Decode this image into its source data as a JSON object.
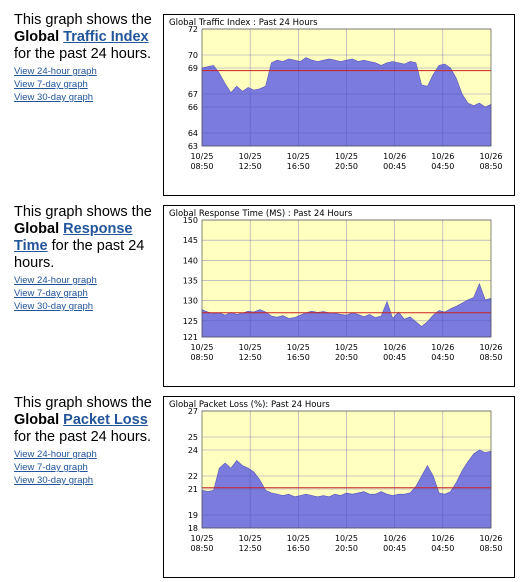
{
  "sections": [
    {
      "desc_prefix": "This graph shows the ",
      "desc_bold": "Global",
      "desc_link": "Traffic Index",
      "desc_suffix": " for the past 24 hours.",
      "links": [
        "View 24-hour graph",
        "View 7-day graph",
        "View 30-day graph"
      ]
    },
    {
      "desc_prefix": "This graph shows the ",
      "desc_bold": "Global",
      "desc_link": "Response Time",
      "desc_suffix": " for the past 24 hours.",
      "links": [
        "View 24-hour graph",
        "View 7-day graph",
        "View 30-day graph"
      ]
    },
    {
      "desc_prefix": "This graph shows the ",
      "desc_bold": "Global",
      "desc_link": "Packet Loss",
      "desc_suffix": " for the past 24 hours.",
      "links": [
        "View 24-hour graph",
        "View 7-day graph",
        "View 30-day graph"
      ]
    }
  ],
  "colors": {
    "plot_bg": "#ffffc0",
    "area": "#7b7bdd",
    "area_edge": "#5555bb",
    "avg_line": "#cc2222",
    "link": "#225599"
  },
  "chart_data": [
    {
      "type": "area",
      "title": "Global Traffic Index : Past 24 Hours",
      "x_ticks": [
        "10/25\n08:50",
        "10/25\n12:50",
        "10/25\n16:50",
        "10/25\n20:50",
        "10/26\n00:45",
        "10/26\n04:50",
        "10/26\n08:50"
      ],
      "y_ticks": [
        63,
        64,
        66,
        67,
        69,
        70,
        72
      ],
      "ylim": [
        63,
        72
      ],
      "average": 68.8,
      "values": [
        69.0,
        69.1,
        69.2,
        68.6,
        67.8,
        67.1,
        67.6,
        67.2,
        67.5,
        67.3,
        67.4,
        67.6,
        69.4,
        69.6,
        69.5,
        69.7,
        69.6,
        69.5,
        69.8,
        69.6,
        69.5,
        69.6,
        69.7,
        69.6,
        69.5,
        69.6,
        69.7,
        69.5,
        69.6,
        69.5,
        69.4,
        69.2,
        69.4,
        69.5,
        69.4,
        69.3,
        69.5,
        69.4,
        67.7,
        67.6,
        68.5,
        69.2,
        69.3,
        69.0,
        68.2,
        67.0,
        66.3,
        66.1,
        66.3,
        66.0,
        66.2
      ]
    },
    {
      "type": "area",
      "title": "Global Response Time (MS) : Past 24 Hours",
      "x_ticks": [
        "10/25\n08:50",
        "10/25\n12:50",
        "10/25\n16:50",
        "10/25\n20:50",
        "10/26\n00:45",
        "10/26\n04:50",
        "10/26\n08:50"
      ],
      "y_ticks": [
        121,
        125,
        130,
        135,
        140,
        145,
        150
      ],
      "ylim": [
        121,
        150
      ],
      "average": 127,
      "values": [
        127.8,
        127.2,
        126.8,
        127.0,
        126.4,
        127.1,
        126.6,
        126.9,
        127.4,
        127.2,
        127.8,
        127.2,
        126.2,
        125.9,
        126.3,
        125.6,
        125.8,
        126.4,
        127.0,
        127.4,
        127.1,
        127.3,
        127.0,
        126.9,
        126.6,
        126.4,
        127.0,
        126.6,
        126.0,
        126.6,
        125.8,
        126.2,
        129.8,
        125.6,
        127.2,
        125.4,
        126.0,
        124.8,
        123.6,
        124.8,
        126.4,
        127.6,
        127.2,
        128.0,
        128.6,
        129.4,
        130.2,
        130.8,
        134.2,
        130.2,
        130.6
      ]
    },
    {
      "type": "area",
      "title": "Global Packet Loss (%): Past 24 Hours",
      "x_ticks": [
        "10/25\n08:50",
        "10/25\n12:50",
        "10/25\n16:50",
        "10/25\n20:50",
        "10/26\n00:45",
        "10/26\n04:50",
        "10/26\n08:50"
      ],
      "y_ticks": [
        18,
        19,
        21,
        22,
        24,
        25,
        27
      ],
      "ylim": [
        18,
        27
      ],
      "average": 21.1,
      "values": [
        20.9,
        20.8,
        20.9,
        22.6,
        23.0,
        22.6,
        23.2,
        22.8,
        22.6,
        22.3,
        21.7,
        20.9,
        20.7,
        20.6,
        20.5,
        20.6,
        20.4,
        20.5,
        20.6,
        20.5,
        20.4,
        20.5,
        20.4,
        20.6,
        20.5,
        20.7,
        20.6,
        20.7,
        20.8,
        20.6,
        20.6,
        20.8,
        20.6,
        20.5,
        20.6,
        20.6,
        20.7,
        21.2,
        22.0,
        22.8,
        22.0,
        20.7,
        20.6,
        20.8,
        21.5,
        22.4,
        23.1,
        23.7,
        24.0,
        23.8,
        23.9
      ]
    }
  ]
}
